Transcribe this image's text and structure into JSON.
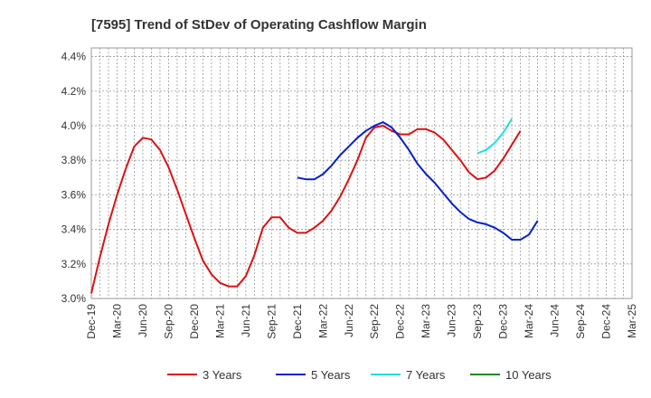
{
  "chart_data": {
    "type": "line",
    "title": "[7595]  Trend of StDev of Operating Cashflow Margin",
    "xlabel": "",
    "ylabel": "",
    "ylim": [
      3.0,
      4.45
    ],
    "yticks": [
      "3.0%",
      "3.2%",
      "3.4%",
      "3.6%",
      "3.8%",
      "4.0%",
      "4.2%",
      "4.4%"
    ],
    "ytick_values": [
      3.0,
      3.2,
      3.4,
      3.6,
      3.8,
      4.0,
      4.2,
      4.4
    ],
    "xticks": [
      "Dec-19",
      "Mar-20",
      "Jun-20",
      "Sep-20",
      "Dec-20",
      "Mar-21",
      "Jun-21",
      "Sep-21",
      "Dec-21",
      "Mar-22",
      "Jun-22",
      "Sep-22",
      "Dec-22",
      "Mar-23",
      "Jun-23",
      "Sep-23",
      "Dec-23",
      "Mar-24",
      "Jun-24",
      "Sep-24",
      "Dec-24",
      "Mar-25"
    ],
    "grid": true,
    "legend_position": "bottom",
    "series": [
      {
        "name": "3 Years",
        "color": "#dd1111",
        "start_index": 0,
        "values": [
          3.03,
          3.24,
          3.43,
          3.6,
          3.75,
          3.88,
          3.93,
          3.92,
          3.86,
          3.76,
          3.63,
          3.49,
          3.35,
          3.22,
          3.14,
          3.09,
          3.07,
          3.07,
          3.13,
          3.25,
          3.41,
          3.47,
          3.47,
          3.41,
          3.38,
          3.38,
          3.41,
          3.45,
          3.51,
          3.59,
          3.69,
          3.8,
          3.93,
          3.99,
          4.0,
          3.97,
          3.95,
          3.95,
          3.98,
          3.98,
          3.96,
          3.92,
          3.86,
          3.8,
          3.73,
          3.69,
          3.7,
          3.74,
          3.81,
          3.89,
          3.97
        ]
      },
      {
        "name": "5 Years",
        "color": "#0022cc",
        "start_index": 24,
        "values": [
          3.7,
          3.69,
          3.69,
          3.72,
          3.77,
          3.83,
          3.88,
          3.93,
          3.97,
          4.0,
          4.02,
          3.99,
          3.93,
          3.86,
          3.78,
          3.72,
          3.67,
          3.61,
          3.55,
          3.5,
          3.46,
          3.44,
          3.43,
          3.41,
          3.38,
          3.34,
          3.34,
          3.37,
          3.45
        ]
      },
      {
        "name": "7 Years",
        "color": "#22dddd",
        "start_index": 45,
        "values": [
          3.84,
          3.86,
          3.9,
          3.96,
          4.04
        ]
      },
      {
        "name": "10 Years",
        "color": "#228822",
        "start_index": 0,
        "values": []
      }
    ]
  }
}
